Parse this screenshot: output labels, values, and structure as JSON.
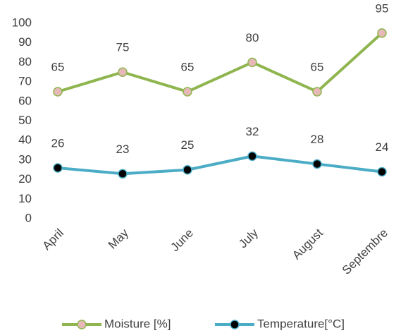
{
  "chart_data": {
    "type": "line",
    "categories": [
      "April",
      "May",
      "June",
      "July",
      "August",
      "Septembre"
    ],
    "series": [
      {
        "name": "Moisture [%]",
        "color": "#8fb54f",
        "marker_color": "#e6b9b8",
        "values": [
          65,
          75,
          65,
          80,
          65,
          95
        ]
      },
      {
        "name": "Temperature[°C]",
        "color": "#4bacc6",
        "marker_color": "#000000",
        "values": [
          26,
          23,
          25,
          32,
          28,
          24
        ]
      }
    ],
    "ylim": [
      0,
      100
    ],
    "yticks": [
      0,
      10,
      20,
      30,
      40,
      50,
      60,
      70,
      80,
      90,
      100
    ],
    "grid": false,
    "legend": "bottom"
  }
}
